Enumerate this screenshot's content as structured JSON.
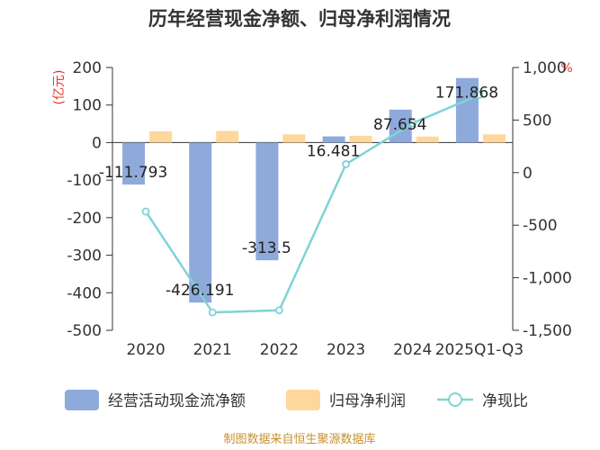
{
  "title": "历年经营现金净额、归母净利润情况",
  "source": "制图数据来自恒生聚源数据库",
  "chart_data": {
    "type": "bar",
    "categories": [
      "2020",
      "2021",
      "2022",
      "2023",
      "2024",
      "2025Q1-Q3"
    ],
    "series": [
      {
        "name": "经营活动现金流净额",
        "type": "bar",
        "axis": "left",
        "color": "#8eaadb",
        "values": [
          -111.793,
          -426.191,
          -313.5,
          16.481,
          87.654,
          171.868
        ]
      },
      {
        "name": "归母净利润",
        "type": "bar",
        "axis": "left",
        "color": "#fdd79b",
        "values": [
          30,
          31,
          22,
          18,
          16,
          22
        ]
      },
      {
        "name": "净现比",
        "type": "line",
        "axis": "right",
        "color": "#7fd3d6",
        "values": [
          -370,
          -1330,
          -1310,
          80,
          470,
          740
        ]
      }
    ],
    "data_labels": [
      "-111.793",
      "-426.191",
      "-313.5",
      "16.481",
      "87.654",
      "171.868"
    ],
    "y_left": {
      "ticks": [
        "200",
        "100",
        "0",
        "-100",
        "-200",
        "-300",
        "-400",
        "-500"
      ],
      "ylim": [
        -500,
        200
      ],
      "unit": "(亿元)"
    },
    "y_right": {
      "ticks": [
        "1,000",
        "500",
        "0",
        "-500",
        "-1,000",
        "-1,500"
      ],
      "ylim": [
        -1500,
        1000
      ],
      "unit": "%"
    },
    "grid": false,
    "legend_position": "bottom"
  }
}
